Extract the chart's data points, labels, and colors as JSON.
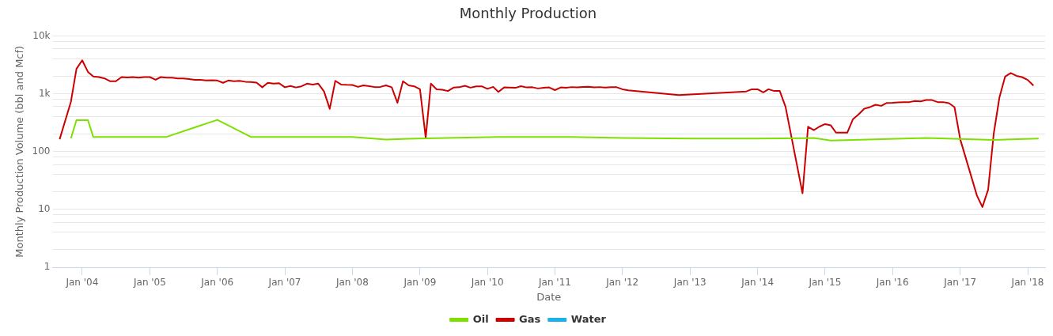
{
  "chart_data": {
    "type": "line",
    "title": "Monthly Production",
    "xlabel": "Date",
    "ylabel": "Monthly Production Volume (bbl and Mcf)",
    "log": "y",
    "grid": "y",
    "legend": "bottom",
    "line_style": "solid",
    "marker": "none",
    "xlim": [
      "2003-07-25",
      "2018-04-05"
    ],
    "xticks": [
      {
        "value": "2004-01",
        "label": "Jan '04"
      },
      {
        "value": "2005-01",
        "label": "Jan '05"
      },
      {
        "value": "2006-01",
        "label": "Jan '06"
      },
      {
        "value": "2007-01",
        "label": "Jan '07"
      },
      {
        "value": "2008-01",
        "label": "Jan '08"
      },
      {
        "value": "2009-01",
        "label": "Jan '09"
      },
      {
        "value": "2010-01",
        "label": "Jan '10"
      },
      {
        "value": "2011-01",
        "label": "Jan '11"
      },
      {
        "value": "2012-01",
        "label": "Jan '12"
      },
      {
        "value": "2013-01",
        "label": "Jan '13"
      },
      {
        "value": "2014-01",
        "label": "Jan '14"
      },
      {
        "value": "2015-01",
        "label": "Jan '15"
      },
      {
        "value": "2016-01",
        "label": "Jan '16"
      },
      {
        "value": "2017-01",
        "label": "Jan '17"
      },
      {
        "value": "2018-01",
        "label": "Jan '18"
      }
    ],
    "ylim": [
      1,
      10000
    ],
    "yticks": [
      1,
      {
        "value": 2,
        "label": null
      },
      {
        "value": 4,
        "label": null
      },
      {
        "value": 6,
        "label": null
      },
      {
        "value": 8,
        "label": null
      },
      10,
      {
        "value": 20,
        "label": null
      },
      {
        "value": 40,
        "label": null
      },
      {
        "value": 60,
        "label": null
      },
      {
        "value": 80,
        "label": null
      },
      100,
      {
        "value": 200,
        "label": null
      },
      {
        "value": 400,
        "label": null
      },
      {
        "value": 600,
        "label": null
      },
      {
        "value": 800,
        "label": null
      },
      {
        "value": 1000,
        "label": "1k"
      },
      {
        "value": 2000,
        "label": null
      },
      {
        "value": 4000,
        "label": null
      },
      {
        "value": 6000,
        "label": null
      },
      {
        "value": 8000,
        "label": null
      },
      {
        "value": 10000,
        "label": "10k"
      }
    ],
    "series": [
      {
        "name": "Oil",
        "color": "#7ee000",
        "x": [
          "2003-11",
          "2003-12",
          "2004-02",
          "2004-03",
          "2005-04",
          "2006-01",
          "2006-07",
          "2008-01",
          "2008-07",
          "2009-02",
          "2010-03",
          "2011-04",
          "2012-01",
          "2013-01",
          "2014-01",
          "2014-11",
          "2015-02",
          "2016-07",
          "2017-07",
          "2018-03"
        ],
        "values": [
          170,
          350,
          350,
          180,
          180,
          355,
          180,
          180,
          162,
          170,
          180,
          180,
          172,
          168,
          168,
          172,
          156,
          172,
          160,
          169
        ]
      },
      {
        "name": "Gas",
        "color": "#cc0000",
        "x": [
          "2003-09",
          "2003-11",
          "2003-12",
          "2004-01",
          "2004-02",
          "2004-03",
          "2004-04",
          "2004-05",
          "2004-06",
          "2004-07",
          "2004-08",
          "2004-09",
          "2004-10",
          "2004-11",
          "2004-12",
          "2005-01",
          "2005-02",
          "2005-03",
          "2005-04",
          "2005-05",
          "2005-06",
          "2005-07",
          "2005-08",
          "2005-09",
          "2005-10",
          "2005-11",
          "2005-12",
          "2006-01",
          "2006-02",
          "2006-03",
          "2006-04",
          "2006-05",
          "2006-06",
          "2006-07",
          "2006-08",
          "2006-09",
          "2006-10",
          "2006-11",
          "2006-12",
          "2007-01",
          "2007-02",
          "2007-03",
          "2007-04",
          "2007-05",
          "2007-06",
          "2007-07",
          "2007-08",
          "2007-09",
          "2007-10",
          "2007-11",
          "2007-12",
          "2008-01",
          "2008-02",
          "2008-03",
          "2008-04",
          "2008-05",
          "2008-06",
          "2008-07",
          "2008-08",
          "2008-09",
          "2008-10",
          "2008-11",
          "2008-12",
          "2009-01",
          "2009-02",
          "2009-03",
          "2009-04",
          "2009-05",
          "2009-06",
          "2009-07",
          "2009-08",
          "2009-09",
          "2009-10",
          "2009-11",
          "2009-12",
          "2010-01",
          "2010-02",
          "2010-03",
          "2010-04",
          "2010-05",
          "2010-06",
          "2010-07",
          "2010-08",
          "2010-09",
          "2010-10",
          "2010-11",
          "2010-12",
          "2011-01",
          "2011-02",
          "2011-03",
          "2011-04",
          "2011-05",
          "2011-06",
          "2011-07",
          "2011-08",
          "2011-09",
          "2011-10",
          "2011-11",
          "2011-12",
          "2012-01",
          "2012-02",
          "2012-11",
          "2013-11",
          "2013-12",
          "2014-01",
          "2014-02",
          "2014-03",
          "2014-04",
          "2014-05",
          "2014-06",
          "2014-09",
          "2014-10",
          "2014-11",
          "2014-12",
          "2015-01",
          "2015-02",
          "2015-03",
          "2015-04",
          "2015-05",
          "2015-06",
          "2015-07",
          "2015-08",
          "2015-09",
          "2015-10",
          "2015-11",
          "2015-12",
          "2016-01",
          "2016-02",
          "2016-03",
          "2016-04",
          "2016-05",
          "2016-06",
          "2016-07",
          "2016-08",
          "2016-09",
          "2016-10",
          "2016-11",
          "2016-12",
          "2017-01",
          "2017-04",
          "2017-05",
          "2017-06",
          "2017-07",
          "2017-08",
          "2017-09",
          "2017-10",
          "2017-11",
          "2017-12",
          "2018-01",
          "2018-02"
        ],
        "values": [
          164,
          730,
          2700,
          3800,
          2400,
          2000,
          1950,
          1850,
          1650,
          1650,
          1950,
          1920,
          1950,
          1900,
          1950,
          1950,
          1750,
          1950,
          1900,
          1900,
          1850,
          1850,
          1800,
          1750,
          1750,
          1700,
          1720,
          1700,
          1550,
          1700,
          1650,
          1680,
          1620,
          1600,
          1560,
          1300,
          1550,
          1500,
          1530,
          1300,
          1370,
          1290,
          1350,
          1500,
          1450,
          1500,
          1100,
          550,
          1680,
          1450,
          1430,
          1420,
          1320,
          1400,
          1360,
          1310,
          1320,
          1400,
          1300,
          700,
          1650,
          1400,
          1350,
          1200,
          175,
          1500,
          1200,
          1180,
          1120,
          1280,
          1300,
          1380,
          1280,
          1350,
          1350,
          1220,
          1320,
          1080,
          1290,
          1280,
          1270,
          1360,
          1290,
          1300,
          1240,
          1270,
          1290,
          1160,
          1290,
          1270,
          1310,
          1290,
          1320,
          1330,
          1290,
          1310,
          1280,
          1300,
          1300,
          1200,
          1150,
          950,
          1100,
          1200,
          1200,
          1060,
          1200,
          1120,
          1120,
          600,
          19,
          270,
          236,
          270,
          300,
          285,
          213,
          213,
          213,
          365,
          440,
          553,
          590,
          647,
          620,
          697,
          700,
          710,
          720,
          720,
          750,
          740,
          780,
          780,
          720,
          720,
          690,
          590,
          164,
          17.5,
          11,
          22,
          202,
          867,
          1990,
          2290,
          2050,
          1950,
          1740,
          1390
        ]
      },
      {
        "name": "Water",
        "color": "#1ab2e8"
      }
    ]
  }
}
